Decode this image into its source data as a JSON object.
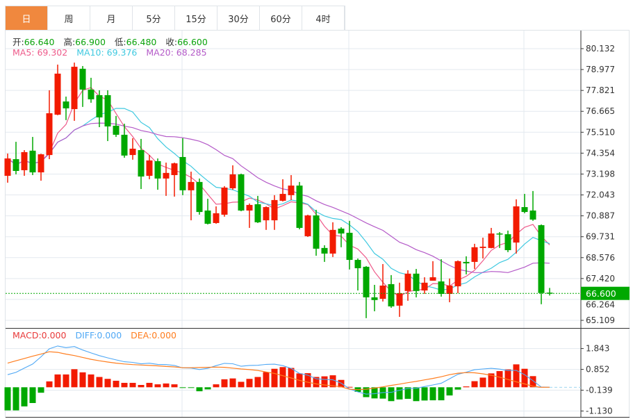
{
  "tabs": [
    {
      "label": "日",
      "active": true
    },
    {
      "label": "周"
    },
    {
      "label": "月"
    },
    {
      "label": "5分"
    },
    {
      "label": "15分"
    },
    {
      "label": "30分"
    },
    {
      "label": "60分"
    },
    {
      "label": "4时"
    }
  ],
  "ohlc_info": {
    "open_label": "开:",
    "open": "66.640",
    "high_label": "高:",
    "high": "66.900",
    "low_label": "低:",
    "low": "66.480",
    "close_label": "收:",
    "close": "66.600"
  },
  "ma_info": {
    "ma5": "MA5: 69.302",
    "ma10": "MA10: 69.376",
    "ma20": "MA20: 68.285"
  },
  "macd_info": {
    "macd": "MACD:0.000",
    "diff": "DIFF:0.000",
    "dea": "DEA:0.000"
  },
  "colors": {
    "up": "#f21b00",
    "down": "#00a800",
    "ma5": "#ee5a8a",
    "ma10": "#3fc9e0",
    "ma20": "#b45ac8",
    "diff": "#4fa8f5",
    "dea": "#ff7d1e",
    "active_tab": "#f0883e",
    "grid": "#e3e9ef"
  },
  "chart_data": [
    {
      "type": "candlestick",
      "price_ticks": [
        "80.132",
        "78.977",
        "77.821",
        "76.665",
        "75.510",
        "74.354",
        "73.198",
        "72.043",
        "70.887",
        "69.731",
        "68.576",
        "67.420",
        "66.264",
        "65.109"
      ],
      "ylim": [
        65.109,
        80.132
      ],
      "last_price": "66.600",
      "moving_averages": [
        5,
        10,
        20
      ],
      "candles": [
        [
          73.1,
          74.33,
          72.72,
          74.06
        ],
        [
          74.02,
          74.98,
          73.18,
          73.37
        ],
        [
          73.41,
          74.52,
          73.1,
          74.41
        ],
        [
          74.49,
          75.25,
          73.14,
          73.29
        ],
        [
          73.29,
          74.32,
          72.83,
          74.29
        ],
        [
          74.25,
          77.83,
          74.02,
          76.56
        ],
        [
          76.48,
          79.25,
          76.45,
          78.75
        ],
        [
          77.21,
          77.48,
          76.18,
          76.83
        ],
        [
          76.79,
          79.36,
          76.14,
          79.13
        ],
        [
          79.02,
          79.17,
          76.91,
          77.87
        ],
        [
          77.87,
          78.52,
          77.14,
          77.33
        ],
        [
          77.56,
          77.83,
          75.79,
          76.33
        ],
        [
          77.56,
          77.83,
          75.02,
          75.83
        ],
        [
          75.87,
          76.41,
          75.25,
          75.37
        ],
        [
          75.37,
          75.98,
          74.1,
          74.22
        ],
        [
          74.25,
          75.18,
          73.99,
          74.6
        ],
        [
          74.52,
          75.14,
          72.37,
          73.06
        ],
        [
          73.1,
          74.25,
          72.91,
          73.95
        ],
        [
          73.91,
          74.06,
          72.33,
          72.95
        ],
        [
          72.95,
          73.83,
          71.99,
          73.26
        ],
        [
          73.14,
          73.83,
          71.95,
          73.79
        ],
        [
          74.14,
          75.18,
          72.03,
          72.3
        ],
        [
          72.3,
          73.33,
          70.64,
          72.76
        ],
        [
          72.76,
          72.95,
          70.95,
          71.1
        ],
        [
          71.18,
          71.83,
          70.41,
          70.45
        ],
        [
          70.49,
          71.41,
          70.45,
          71.03
        ],
        [
          70.95,
          72.53,
          70.84,
          72.45
        ],
        [
          72.41,
          73.68,
          72.33,
          73.18
        ],
        [
          73.18,
          73.22,
          71.14,
          71.18
        ],
        [
          71.18,
          71.57,
          70.22,
          71.49
        ],
        [
          71.53,
          71.99,
          70.49,
          70.53
        ],
        [
          70.64,
          71.41,
          70.11,
          71.37
        ],
        [
          70.64,
          72.03,
          70.11,
          71.76
        ],
        [
          71.72,
          72.91,
          71.68,
          72.1
        ],
        [
          72.03,
          73.14,
          71.76,
          72.56
        ],
        [
          72.56,
          72.76,
          70.14,
          70.22
        ],
        [
          69.76,
          70.95,
          69.72,
          70.91
        ],
        [
          70.91,
          71.22,
          68.68,
          69.07
        ],
        [
          69.11,
          69.26,
          68.34,
          68.8
        ],
        [
          68.8,
          70.53,
          68.61,
          70.11
        ],
        [
          70.18,
          70.26,
          69.15,
          69.91
        ],
        [
          69.95,
          70.61,
          67.92,
          68.45
        ],
        [
          68.45,
          68.53,
          66.76,
          67.99
        ],
        [
          68.07,
          68.11,
          65.23,
          66.38
        ],
        [
          66.38,
          67.07,
          65.61,
          66.23
        ],
        [
          66.3,
          68.22,
          66.15,
          67.03
        ],
        [
          67.11,
          67.61,
          65.8,
          65.88
        ],
        [
          65.92,
          67.19,
          65.3,
          66.61
        ],
        [
          66.73,
          67.88,
          66.19,
          67.69
        ],
        [
          67.69,
          67.95,
          66.38,
          66.73
        ],
        [
          66.76,
          67.49,
          66.57,
          67.19
        ],
        [
          67.3,
          68.38,
          67.3,
          67.49
        ],
        [
          67.26,
          68.49,
          66.42,
          66.57
        ],
        [
          66.57,
          67.42,
          66.11,
          67.03
        ],
        [
          66.99,
          68.42,
          66.61,
          68.38
        ],
        [
          68.34,
          68.65,
          67.65,
          68.26
        ],
        [
          68.34,
          69.34,
          67.95,
          69.15
        ],
        [
          69.11,
          69.68,
          68.53,
          69.18
        ],
        [
          69.11,
          70.22,
          69.09,
          69.91
        ],
        [
          69.91,
          69.99,
          69.11,
          69.87
        ],
        [
          69.87,
          70.07,
          68.88,
          68.99
        ],
        [
          69.41,
          71.8,
          68.8,
          71.41
        ],
        [
          71.37,
          72.1,
          71.03,
          71.1
        ],
        [
          71.18,
          72.26,
          70.61,
          70.68
        ],
        [
          70.37,
          70.41,
          66.0,
          66.62
        ],
        [
          66.64,
          66.9,
          66.48,
          66.6
        ]
      ]
    },
    {
      "type": "macd",
      "ticks": [
        "1.843",
        "0.852",
        "-0.139",
        "-1.130"
      ],
      "ylim": [
        -1.13,
        1.843
      ],
      "macd": [
        -1.1,
        -1.1,
        -0.91,
        -0.75,
        -0.26,
        0.28,
        0.61,
        0.61,
        0.86,
        0.71,
        0.61,
        0.49,
        0.4,
        0.31,
        0.21,
        0.21,
        0.11,
        0.21,
        0.14,
        0.18,
        0.14,
        -0.02,
        -0.03,
        -0.19,
        -0.1,
        0.14,
        0.38,
        0.42,
        0.26,
        0.4,
        0.49,
        0.72,
        0.88,
        0.96,
        0.92,
        0.66,
        0.67,
        0.49,
        0.52,
        0.57,
        0.35,
        0.02,
        -0.22,
        -0.47,
        -0.53,
        -0.54,
        -0.66,
        -0.58,
        -0.55,
        -0.66,
        -0.63,
        -0.62,
        -0.62,
        -0.39,
        -0.11,
        0.04,
        0.29,
        0.46,
        0.66,
        0.77,
        0.85,
        1.09,
        0.88,
        0.53,
        0.02,
        0
      ],
      "dea": [
        1.15,
        1.26,
        1.37,
        1.48,
        1.58,
        1.69,
        1.66,
        1.58,
        1.51,
        1.42,
        1.33,
        1.26,
        1.2,
        1.15,
        1.11,
        1.08,
        1.06,
        1.04,
        1.02,
        0.99,
        0.97,
        0.93,
        0.93,
        0.94,
        0.95,
        0.96,
        0.95,
        0.91,
        0.87,
        0.84,
        0.8,
        0.73,
        0.66,
        0.55,
        0.44,
        0.33,
        0.24,
        0.16,
        0.11,
        0.07,
        0.02,
        -0.09,
        -0.11,
        -0.09,
        -0.04,
        0.02,
        0.09,
        0.15,
        0.22,
        0.28,
        0.35,
        0.42,
        0.5,
        0.6,
        0.67,
        0.7,
        0.69,
        0.64,
        0.57,
        0.48,
        0.37,
        0.26,
        0.16,
        0.05,
        0,
        0
      ]
    }
  ]
}
